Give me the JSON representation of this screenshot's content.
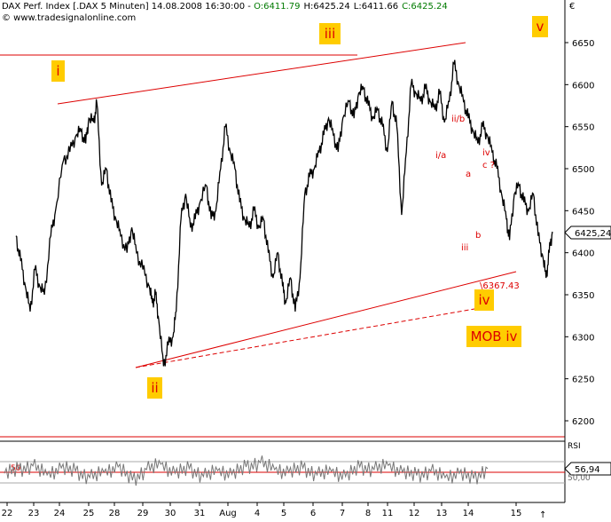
{
  "header": {
    "title": "DAX Perf. Index [.DAX  5 Minuten] 14.08.2008 16:30:00 - ",
    "open": "O:6411.79",
    "high": "H:6425.24",
    "low": "L:6411.66",
    "close": "C:6425.24",
    "source": "© www.tradesignalonline.com",
    "currency_symbol": "€",
    "colors": {
      "open": "#007a00",
      "close": "#007a00",
      "text": "#000000"
    }
  },
  "chart_data": [
    {
      "type": "line",
      "name": "DAX Perf. Index 5 Minuten",
      "ylim": [
        6170,
        6700
      ],
      "y_ticks": [
        6200,
        6250,
        6300,
        6350,
        6400,
        6450,
        6500,
        6550,
        6600,
        6650
      ],
      "x_tick_labels": [
        "22",
        "23",
        "24",
        "25",
        "28",
        "29",
        "30",
        "31",
        "Aug",
        "4",
        "5",
        "6",
        "7",
        "8",
        "11",
        "12",
        "13",
        "14",
        "15"
      ],
      "last_value_label": "6425,24",
      "grid": false,
      "line_color": "#000000",
      "annotation_color": "#dd0000",
      "wave_box_color": "#ffcc00",
      "wave_labels": [
        "i",
        "ii",
        "iii",
        "iv",
        "v"
      ],
      "annotations": [
        "ii/b",
        "i/a",
        "iv",
        "c ?",
        "a",
        "b",
        "iii",
        "\\6367.43",
        "MOB iv"
      ],
      "points": [
        {
          "x": 1.0,
          "y": 6420
        },
        {
          "x": 1.3,
          "y": 6390
        },
        {
          "x": 1.6,
          "y": 6360
        },
        {
          "x": 1.9,
          "y": 6330
        },
        {
          "x": 2.2,
          "y": 6380
        },
        {
          "x": 2.5,
          "y": 6360
        },
        {
          "x": 2.8,
          "y": 6350
        },
        {
          "x": 3.2,
          "y": 6420
        },
        {
          "x": 3.5,
          "y": 6450
        },
        {
          "x": 4.0,
          "y": 6510
        },
        {
          "x": 4.4,
          "y": 6520
        },
        {
          "x": 4.8,
          "y": 6540
        },
        {
          "x": 5.1,
          "y": 6545
        },
        {
          "x": 5.4,
          "y": 6530
        },
        {
          "x": 5.6,
          "y": 6560
        },
        {
          "x": 5.9,
          "y": 6555
        },
        {
          "x": 6.1,
          "y": 6578
        },
        {
          "x": 6.4,
          "y": 6480
        },
        {
          "x": 6.7,
          "y": 6500
        },
        {
          "x": 7.0,
          "y": 6460
        },
        {
          "x": 7.3,
          "y": 6440
        },
        {
          "x": 7.6,
          "y": 6420
        },
        {
          "x": 8.0,
          "y": 6400
        },
        {
          "x": 8.3,
          "y": 6430
        },
        {
          "x": 8.6,
          "y": 6400
        },
        {
          "x": 9.0,
          "y": 6380
        },
        {
          "x": 9.4,
          "y": 6360
        },
        {
          "x": 9.6,
          "y": 6340
        },
        {
          "x": 9.8,
          "y": 6350
        },
        {
          "x": 10.0,
          "y": 6320
        },
        {
          "x": 10.3,
          "y": 6265
        },
        {
          "x": 10.6,
          "y": 6290
        },
        {
          "x": 10.9,
          "y": 6300
        },
        {
          "x": 11.1,
          "y": 6330
        },
        {
          "x": 11.4,
          "y": 6440
        },
        {
          "x": 11.7,
          "y": 6470
        },
        {
          "x": 12.0,
          "y": 6430
        },
        {
          "x": 12.3,
          "y": 6440
        },
        {
          "x": 12.6,
          "y": 6460
        },
        {
          "x": 13.0,
          "y": 6480
        },
        {
          "x": 13.3,
          "y": 6440
        },
        {
          "x": 13.6,
          "y": 6450
        },
        {
          "x": 13.9,
          "y": 6500
        },
        {
          "x": 14.2,
          "y": 6550
        },
        {
          "x": 14.5,
          "y": 6520
        },
        {
          "x": 14.8,
          "y": 6500
        },
        {
          "x": 15.1,
          "y": 6460
        },
        {
          "x": 15.4,
          "y": 6440
        },
        {
          "x": 15.7,
          "y": 6430
        },
        {
          "x": 16.0,
          "y": 6450
        },
        {
          "x": 16.3,
          "y": 6430
        },
        {
          "x": 16.6,
          "y": 6440
        },
        {
          "x": 16.9,
          "y": 6400
        },
        {
          "x": 17.2,
          "y": 6370
        },
        {
          "x": 17.5,
          "y": 6400
        },
        {
          "x": 17.8,
          "y": 6360
        },
        {
          "x": 18.0,
          "y": 6340
        },
        {
          "x": 18.3,
          "y": 6370
        },
        {
          "x": 18.6,
          "y": 6330
        },
        {
          "x": 18.9,
          "y": 6370
        },
        {
          "x": 19.2,
          "y": 6470
        },
        {
          "x": 19.5,
          "y": 6490
        },
        {
          "x": 19.8,
          "y": 6500
        },
        {
          "x": 20.1,
          "y": 6520
        },
        {
          "x": 20.4,
          "y": 6540
        },
        {
          "x": 20.7,
          "y": 6560
        },
        {
          "x": 21.0,
          "y": 6540
        },
        {
          "x": 21.3,
          "y": 6520
        },
        {
          "x": 21.6,
          "y": 6560
        },
        {
          "x": 22.0,
          "y": 6580
        },
        {
          "x": 22.3,
          "y": 6560
        },
        {
          "x": 22.6,
          "y": 6590
        },
        {
          "x": 22.9,
          "y": 6595
        },
        {
          "x": 23.2,
          "y": 6575
        },
        {
          "x": 23.5,
          "y": 6560
        },
        {
          "x": 23.8,
          "y": 6570
        },
        {
          "x": 24.1,
          "y": 6550
        },
        {
          "x": 24.4,
          "y": 6520
        },
        {
          "x": 24.7,
          "y": 6580
        },
        {
          "x": 25.0,
          "y": 6550
        },
        {
          "x": 25.3,
          "y": 6445
        },
        {
          "x": 25.6,
          "y": 6520
        },
        {
          "x": 25.9,
          "y": 6600
        },
        {
          "x": 26.2,
          "y": 6590
        },
        {
          "x": 26.5,
          "y": 6580
        },
        {
          "x": 26.8,
          "y": 6595
        },
        {
          "x": 27.1,
          "y": 6580
        },
        {
          "x": 27.4,
          "y": 6570
        },
        {
          "x": 27.7,
          "y": 6590
        },
        {
          "x": 28.0,
          "y": 6555
        },
        {
          "x": 28.3,
          "y": 6580
        },
        {
          "x": 28.6,
          "y": 6625
        },
        {
          "x": 28.9,
          "y": 6600
        },
        {
          "x": 29.2,
          "y": 6580
        },
        {
          "x": 29.5,
          "y": 6560
        },
        {
          "x": 29.8,
          "y": 6545
        },
        {
          "x": 30.1,
          "y": 6530
        },
        {
          "x": 30.4,
          "y": 6550
        },
        {
          "x": 30.7,
          "y": 6540
        },
        {
          "x": 31.0,
          "y": 6520
        },
        {
          "x": 31.3,
          "y": 6500
        },
        {
          "x": 31.6,
          "y": 6470
        },
        {
          "x": 31.9,
          "y": 6440
        },
        {
          "x": 32.1,
          "y": 6415
        },
        {
          "x": 32.4,
          "y": 6470
        },
        {
          "x": 32.7,
          "y": 6480
        },
        {
          "x": 33.0,
          "y": 6460
        },
        {
          "x": 33.3,
          "y": 6450
        },
        {
          "x": 33.6,
          "y": 6470
        },
        {
          "x": 33.9,
          "y": 6420
        },
        {
          "x": 34.2,
          "y": 6395
        },
        {
          "x": 34.4,
          "y": 6370
        },
        {
          "x": 34.6,
          "y": 6400
        },
        {
          "x": 34.8,
          "y": 6425
        }
      ]
    },
    {
      "type": "line",
      "name": "RSI",
      "ylim": [
        0,
        100
      ],
      "reference_level": 50,
      "reference_label": "50",
      "last_value_label": "56,94",
      "other_tick_label": "50,00",
      "line_color": "#777777",
      "points": [
        {
          "x": 1,
          "y": 48
        },
        {
          "x": 2,
          "y": 55
        },
        {
          "x": 3,
          "y": 62
        },
        {
          "x": 4,
          "y": 45
        },
        {
          "x": 5,
          "y": 58
        },
        {
          "x": 6,
          "y": 52
        },
        {
          "x": 7,
          "y": 40
        },
        {
          "x": 8,
          "y": 50
        },
        {
          "x": 9,
          "y": 60
        },
        {
          "x": 10,
          "y": 35
        },
        {
          "x": 11,
          "y": 55
        },
        {
          "x": 12,
          "y": 65
        },
        {
          "x": 13,
          "y": 48
        },
        {
          "x": 14,
          "y": 57
        },
        {
          "x": 15,
          "y": 42
        },
        {
          "x": 16,
          "y": 53
        },
        {
          "x": 17,
          "y": 46
        },
        {
          "x": 18,
          "y": 60
        },
        {
          "x": 19,
          "y": 68
        },
        {
          "x": 20,
          "y": 55
        },
        {
          "x": 21,
          "y": 50
        },
        {
          "x": 22,
          "y": 58
        },
        {
          "x": 23,
          "y": 45
        },
        {
          "x": 24,
          "y": 52
        },
        {
          "x": 25,
          "y": 42
        },
        {
          "x": 26,
          "y": 60
        },
        {
          "x": 27,
          "y": 55
        },
        {
          "x": 28,
          "y": 63
        },
        {
          "x": 29,
          "y": 50
        },
        {
          "x": 30,
          "y": 44
        },
        {
          "x": 31,
          "y": 52
        },
        {
          "x": 32,
          "y": 40
        },
        {
          "x": 33,
          "y": 48
        },
        {
          "x": 34,
          "y": 38
        },
        {
          "x": 35,
          "y": 57
        }
      ]
    }
  ]
}
